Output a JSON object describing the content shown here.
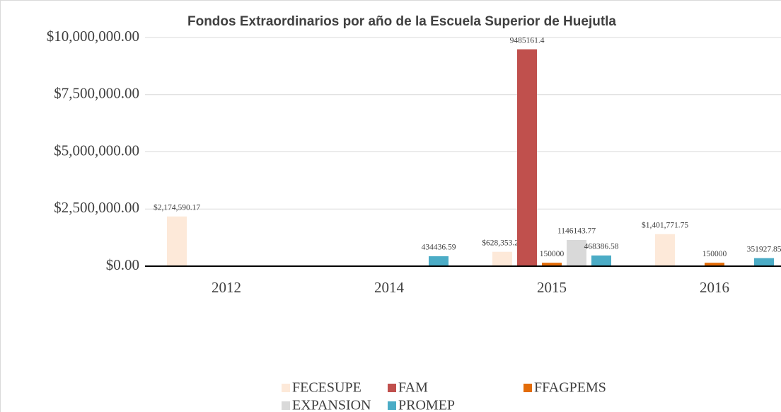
{
  "chart_data": {
    "type": "bar",
    "title": "Fondos Extraordinarios por año de la Escuela Superior de Huejutla",
    "categories": [
      "2012",
      "2014",
      "2015",
      "2016"
    ],
    "series": [
      {
        "name": "FECESUPE",
        "color": "#fde9d9",
        "values": [
          2174590.17,
          null,
          628353.22,
          1401771.75
        ],
        "value_labels": [
          "$2,174,590.17",
          null,
          "$628,353.22",
          "$1,401,771.75"
        ]
      },
      {
        "name": "FAM",
        "color": "#c0504d",
        "values": [
          null,
          null,
          9485161.4,
          null
        ]
      },
      {
        "name": "FFAGPEMS",
        "color": "#e36c09",
        "values": [
          null,
          null,
          150000,
          150000
        ]
      },
      {
        "name": "EXPANSION",
        "color": "#d9d9d9",
        "values": [
          null,
          null,
          1146143.77,
          null
        ]
      },
      {
        "name": "PROMEP",
        "color": "#4bacc6",
        "values": [
          null,
          434436.59,
          468386.58,
          351927.85
        ]
      }
    ],
    "ylim": [
      0,
      10000000
    ],
    "yticks": [
      {
        "value": 0,
        "label": "$0.00"
      },
      {
        "value": 2500000,
        "label": "$2,500,000.00"
      },
      {
        "value": 5000000,
        "label": "$5,000,000.00"
      },
      {
        "value": 7500000,
        "label": "$7,500,000.00"
      },
      {
        "value": 10000000,
        "label": "$10,000,000.00"
      }
    ],
    "grid": true,
    "legend": "bottom"
  }
}
